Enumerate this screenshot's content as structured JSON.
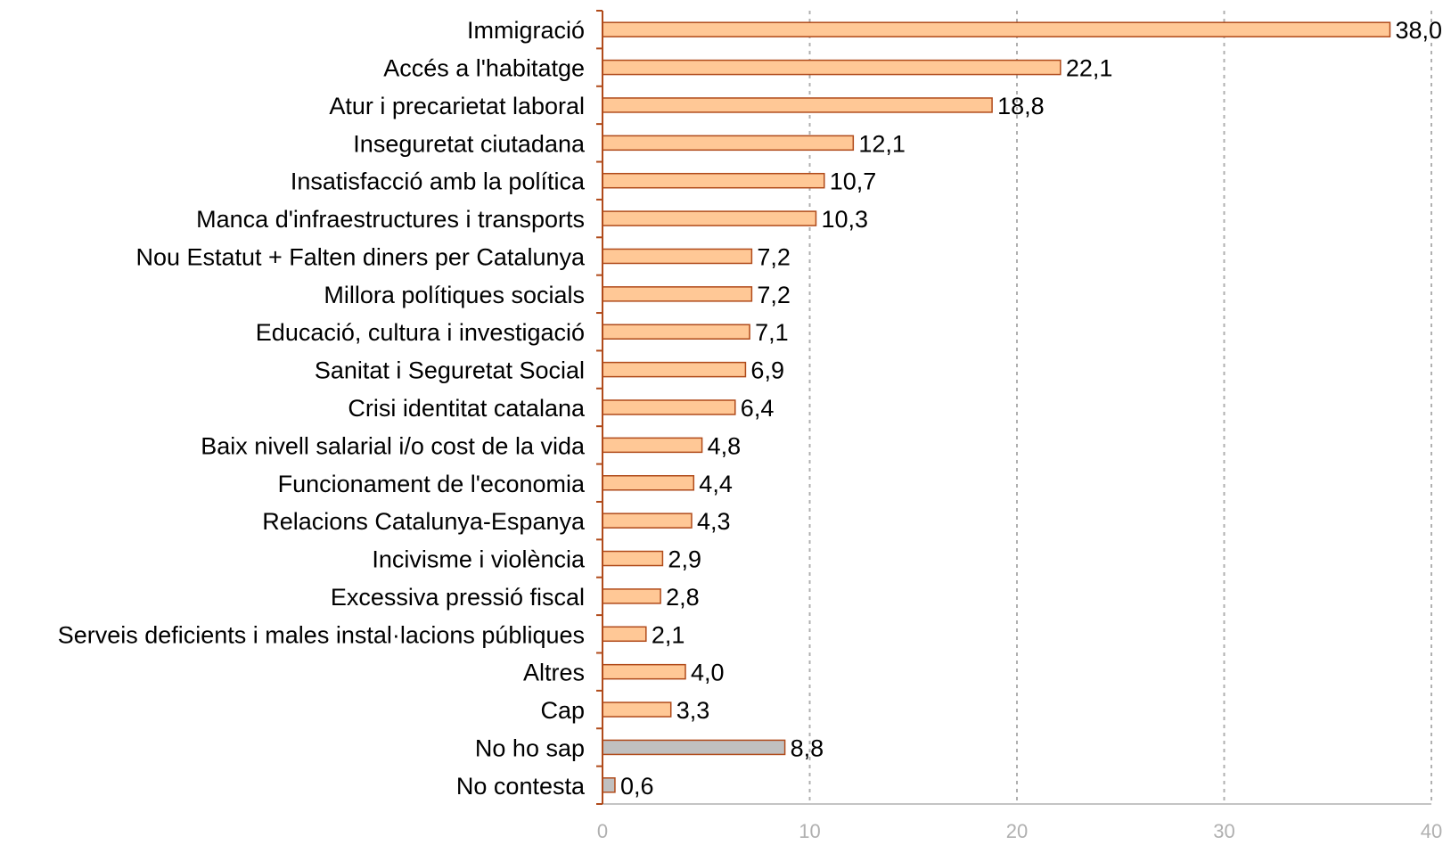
{
  "chart_data": {
    "type": "bar",
    "orientation": "horizontal",
    "title": "",
    "xlabel": "",
    "ylabel": "",
    "xlim": [
      0,
      40
    ],
    "x_ticks": [
      0,
      10,
      20,
      30,
      40
    ],
    "grid": "vertical dashed",
    "legend": "none",
    "categories": [
      "Immigració",
      "Accés a l'habitatge",
      "Atur i precarietat laboral",
      "Inseguretat ciutadana",
      "Insatisfacció amb la política",
      "Manca d'infraestructures i transports",
      "Nou Estatut + Falten diners per Catalunya",
      "Millora polítiques socials",
      "Educació, cultura i investigació",
      "Sanitat i Seguretat Social",
      "Crisi identitat catalana",
      "Baix nivell salarial i/o cost de la vida",
      "Funcionament de l'economia",
      "Relacions Catalunya-Espanya",
      "Incivisme i violència",
      "Excessiva pressió fiscal",
      "Serveis deficients i males instal·lacions públiques",
      "Altres",
      "Cap",
      "No ho sap",
      "No contesta"
    ],
    "values": [
      38.0,
      22.1,
      18.8,
      12.1,
      10.7,
      10.3,
      7.2,
      7.2,
      7.1,
      6.9,
      6.4,
      4.8,
      4.4,
      4.3,
      2.9,
      2.8,
      2.1,
      4.0,
      3.3,
      8.8,
      0.6
    ],
    "value_labels": [
      "38,0",
      "22,1",
      "18,8",
      "12,1",
      "10,7",
      "10,3",
      "7,2",
      "7,2",
      "7,1",
      "6,9",
      "6,4",
      "4,8",
      "4,4",
      "4,3",
      "2,9",
      "2,8",
      "2,1",
      "4,0",
      "3,3",
      "8,8",
      "0,6"
    ],
    "bar_colors": [
      "#ffc896",
      "#ffc896",
      "#ffc896",
      "#ffc896",
      "#ffc896",
      "#ffc896",
      "#ffc896",
      "#ffc896",
      "#ffc896",
      "#ffc896",
      "#ffc896",
      "#ffc896",
      "#ffc896",
      "#ffc896",
      "#ffc896",
      "#ffc896",
      "#ffc896",
      "#ffc896",
      "#ffc896",
      "#c0c0c0",
      "#c0c0c0"
    ],
    "bar_outline_color": "#b04a1a",
    "axis_color": "#b04a1a",
    "grid_color": "#b0b0b0"
  }
}
